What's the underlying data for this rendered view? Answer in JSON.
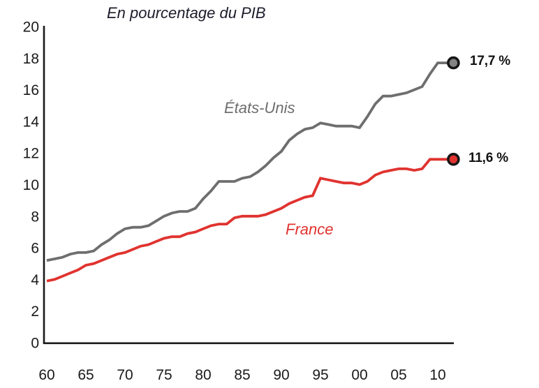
{
  "chart_data": {
    "type": "line",
    "title": "En pourcentage du PIB",
    "xlabel": "",
    "ylabel": "",
    "ylim": [
      0,
      20
    ],
    "yticks": [
      0,
      2,
      4,
      6,
      8,
      10,
      12,
      14,
      16,
      18,
      20
    ],
    "xtick_years": [
      1960,
      1965,
      1970,
      1975,
      1980,
      1985,
      1990,
      1995,
      2000,
      2005,
      2010
    ],
    "xtick_labels": [
      "60",
      "65",
      "70",
      "75",
      "80",
      "85",
      "90",
      "95",
      "00",
      "05",
      "10"
    ],
    "grid": false,
    "legend_position": "inline-labels",
    "years": [
      1960,
      1961,
      1962,
      1963,
      1964,
      1965,
      1966,
      1967,
      1968,
      1969,
      1970,
      1971,
      1972,
      1973,
      1974,
      1975,
      1976,
      1977,
      1978,
      1979,
      1980,
      1981,
      1982,
      1983,
      1984,
      1985,
      1986,
      1987,
      1988,
      1989,
      1990,
      1991,
      1992,
      1993,
      1994,
      1995,
      1996,
      1997,
      1998,
      1999,
      2000,
      2001,
      2002,
      2003,
      2004,
      2005,
      2006,
      2007,
      2008,
      2009,
      2010,
      2011,
      2012
    ],
    "series": [
      {
        "name": "États-Unis",
        "color": "#6e6e6e",
        "marker_fill": "#848484",
        "marker_ring": "#161616",
        "end_label": "17,7 %",
        "end_value": 17.7,
        "values": [
          5.2,
          5.3,
          5.4,
          5.6,
          5.7,
          5.7,
          5.8,
          6.2,
          6.5,
          6.9,
          7.2,
          7.3,
          7.3,
          7.4,
          7.7,
          8.0,
          8.2,
          8.3,
          8.3,
          8.5,
          9.1,
          9.6,
          10.2,
          10.2,
          10.2,
          10.4,
          10.5,
          10.8,
          11.2,
          11.7,
          12.1,
          12.8,
          13.2,
          13.5,
          13.6,
          13.9,
          13.8,
          13.7,
          13.7,
          13.7,
          13.6,
          14.3,
          15.1,
          15.6,
          15.6,
          15.7,
          15.8,
          16.0,
          16.2,
          17.0,
          17.7,
          17.7,
          17.7
        ]
      },
      {
        "name": "France",
        "color": "#e0332f",
        "marker_fill": "#e0332f",
        "marker_ring": "#161616",
        "end_label": "11,6 %",
        "end_value": 11.6,
        "values": [
          3.9,
          4.0,
          4.2,
          4.4,
          4.6,
          4.9,
          5.0,
          5.2,
          5.4,
          5.6,
          5.7,
          5.9,
          6.1,
          6.2,
          6.4,
          6.6,
          6.7,
          6.7,
          6.9,
          7.0,
          7.2,
          7.4,
          7.5,
          7.5,
          7.9,
          8.0,
          8.0,
          8.0,
          8.1,
          8.3,
          8.5,
          8.8,
          9.0,
          9.2,
          9.3,
          10.4,
          10.3,
          10.2,
          10.1,
          10.1,
          10.0,
          10.2,
          10.6,
          10.8,
          10.9,
          11.0,
          11.0,
          10.9,
          11.0,
          11.6,
          11.6,
          11.6,
          11.6
        ]
      }
    ],
    "axis_color": "#1a1a1a"
  }
}
